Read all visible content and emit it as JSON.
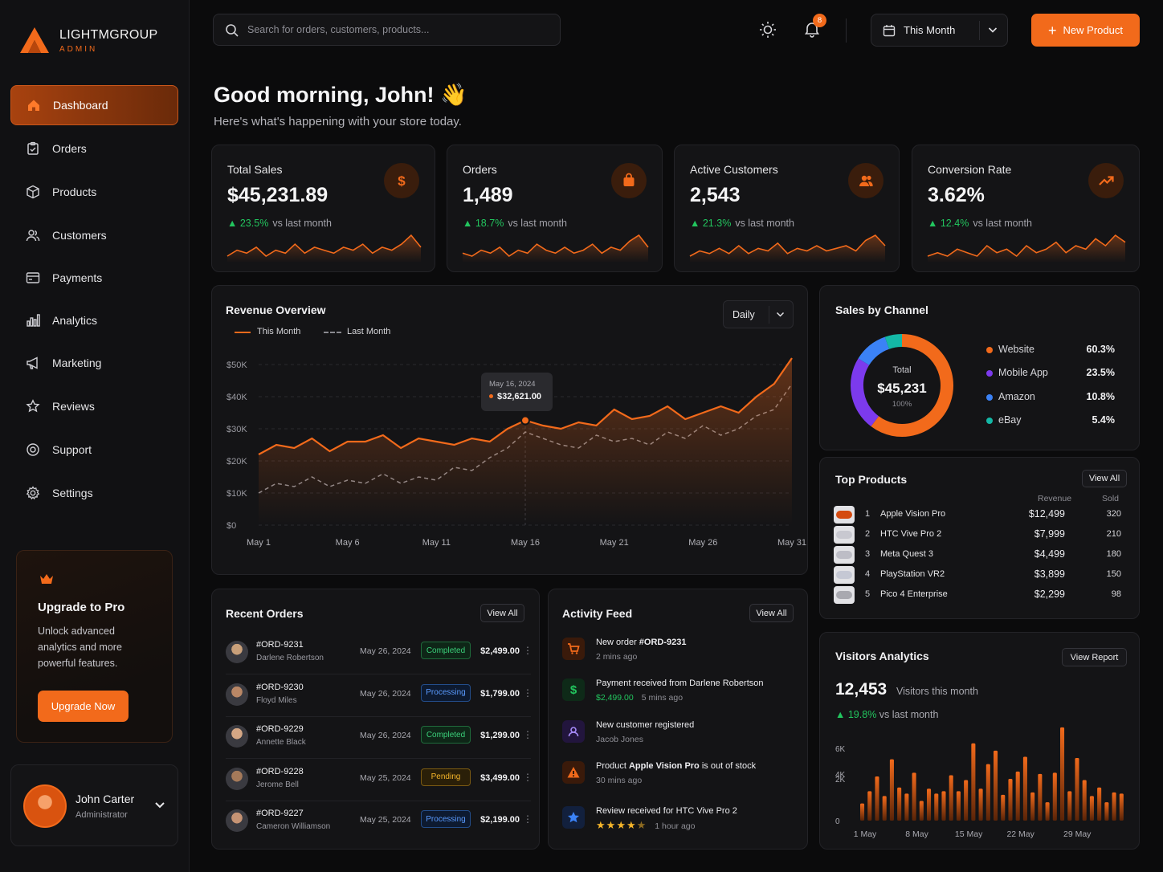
{
  "brand": {
    "name": "LIGHTMGROUP",
    "sub": "ADMIN",
    "accent": "#f26a1b"
  },
  "nav": [
    {
      "label": "Dashboard",
      "icon": "home-icon",
      "active": true
    },
    {
      "label": "Orders",
      "icon": "clipboard-icon"
    },
    {
      "label": "Products",
      "icon": "box-icon"
    },
    {
      "label": "Customers",
      "icon": "users-icon"
    },
    {
      "label": "Payments",
      "icon": "wallet-icon"
    },
    {
      "label": "Analytics",
      "icon": "bar-chart-icon"
    },
    {
      "label": "Marketing",
      "icon": "megaphone-icon"
    },
    {
      "label": "Reviews",
      "icon": "star-icon"
    },
    {
      "label": "Support",
      "icon": "lifebuoy-icon"
    },
    {
      "label": "Settings",
      "icon": "gear-icon"
    }
  ],
  "upgrade": {
    "title": "Upgrade to Pro",
    "text": "Unlock advanced analytics and more powerful features.",
    "button": "Upgrade Now"
  },
  "profile": {
    "name": "John Carter",
    "role": "Administrator"
  },
  "topbar": {
    "search_placeholder": "Search for orders, customers, products...",
    "notif_count": "8",
    "period": "This Month",
    "new_product": "New Product"
  },
  "greeting": {
    "title": "Good morning, John! 👋",
    "subtitle": "Here's what's happening with your store today."
  },
  "kpis": [
    {
      "title": "Total Sales",
      "value": "$45,231.89",
      "change": "23.5%",
      "suffix": "vs last month",
      "icon": "dollar-icon"
    },
    {
      "title": "Orders",
      "value": "1,489",
      "change": "18.7%",
      "suffix": "vs last month",
      "icon": "bag-icon"
    },
    {
      "title": "Active Customers",
      "value": "2,543",
      "change": "21.3%",
      "suffix": "vs last month",
      "icon": "users-icon"
    },
    {
      "title": "Conversion Rate",
      "value": "3.62%",
      "change": "12.4%",
      "suffix": "vs last month",
      "icon": "trend-up-icon"
    }
  ],
  "revenue": {
    "title": "Revenue Overview",
    "dropdown": "Daily",
    "tooltip_date": "May 16, 2024",
    "tooltip_value": "$32,621.00"
  },
  "channels": {
    "title": "Sales by Channel",
    "total_label": "Total",
    "total_value": "$45,231",
    "total_pct": "100%",
    "items": [
      {
        "name": "Website",
        "pct": "60.3%",
        "color": "#f26a1b"
      },
      {
        "name": "Mobile App",
        "pct": "23.5%",
        "color": "#7c3aed"
      },
      {
        "name": "Amazon",
        "pct": "10.8%",
        "color": "#3b82f6"
      },
      {
        "name": "eBay",
        "pct": "5.4%",
        "color": "#14b8a6"
      }
    ]
  },
  "top_products": {
    "title": "Top Products",
    "view_all": "View All",
    "col_revenue": "Revenue",
    "col_sold": "Sold",
    "items": [
      {
        "rank": "1",
        "name": "Apple Vision Pro",
        "revenue": "$12,499",
        "sold": "320"
      },
      {
        "rank": "2",
        "name": "HTC Vive Pro 2",
        "revenue": "$7,999",
        "sold": "210"
      },
      {
        "rank": "3",
        "name": "Meta Quest 3",
        "revenue": "$4,499",
        "sold": "180"
      },
      {
        "rank": "4",
        "name": "PlayStation VR2",
        "revenue": "$3,899",
        "sold": "150"
      },
      {
        "rank": "5",
        "name": "Pico 4 Enterprise",
        "revenue": "$2,299",
        "sold": "98"
      }
    ]
  },
  "recent_orders": {
    "title": "Recent Orders",
    "view_all": "View All",
    "items": [
      {
        "id": "#ORD-9231",
        "name": "Darlene Robertson",
        "date": "May 26, 2024",
        "status": "Completed",
        "amount": "$2,499.00"
      },
      {
        "id": "#ORD-9230",
        "name": "Floyd Miles",
        "date": "May 26, 2024",
        "status": "Processing",
        "amount": "$1,799.00"
      },
      {
        "id": "#ORD-9229",
        "name": "Annette Black",
        "date": "May 26, 2024",
        "status": "Completed",
        "amount": "$1,299.00"
      },
      {
        "id": "#ORD-9228",
        "name": "Jerome Bell",
        "date": "May 25, 2024",
        "status": "Pending",
        "amount": "$3,499.00"
      },
      {
        "id": "#ORD-9227",
        "name": "Cameron Williamson",
        "date": "May 25, 2024",
        "status": "Processing",
        "amount": "$2,199.00"
      }
    ]
  },
  "activity": {
    "title": "Activity Feed",
    "view_all": "View All",
    "items": [
      {
        "pre": "New order ",
        "strong": "#ORD-9231",
        "post": "",
        "sub": "2 mins ago",
        "icon": "cart-icon"
      },
      {
        "pre": "Payment received from Darlene Robertson",
        "strong": "",
        "post": "",
        "amount": "$2,499.00",
        "sub": "5 mins ago",
        "icon": "dollar-icon"
      },
      {
        "pre": "New customer registered",
        "strong": "",
        "post": "",
        "sub": "Jacob Jones",
        "icon": "user-icon"
      },
      {
        "pre": "Product ",
        "strong": "Apple Vision Pro",
        "post": " is out of stock",
        "sub": "30 mins ago",
        "icon": "warning-icon"
      },
      {
        "pre": "Review received for HTC Vive Pro 2",
        "strong": "",
        "post": "",
        "sub": "1 hour ago",
        "rating": 4.5,
        "icon": "star-icon"
      }
    ]
  },
  "visitors": {
    "title": "Visitors Analytics",
    "view_report": "View Report",
    "value": "12,453",
    "label": "Visitors this month",
    "change": "19.8%",
    "suffix": "vs last month"
  },
  "chart_data": [
    {
      "type": "line",
      "title": "Revenue Overview",
      "x_tick_labels": [
        "May 1",
        "May 6",
        "May 11",
        "May 16",
        "May 21",
        "May 26",
        "May 31"
      ],
      "y_tick_labels": [
        "$0",
        "$10K",
        "$20K",
        "$30K",
        "$40K",
        "$50K"
      ],
      "ylim": [
        0,
        50000
      ],
      "x": [
        1,
        2,
        3,
        4,
        5,
        6,
        7,
        8,
        9,
        10,
        11,
        12,
        13,
        14,
        15,
        16,
        17,
        18,
        19,
        20,
        21,
        22,
        23,
        24,
        25,
        26,
        27,
        28,
        29,
        30,
        31
      ],
      "series": [
        {
          "name": "This Month",
          "color": "#f26a1b",
          "dashed": false,
          "values": [
            22000,
            25000,
            24000,
            27000,
            23000,
            26000,
            26000,
            28000,
            24000,
            27000,
            26000,
            25000,
            27000,
            26000,
            30000,
            32621,
            31000,
            30000,
            32000,
            31000,
            36000,
            33000,
            34000,
            37000,
            33000,
            35000,
            37000,
            35000,
            40000,
            44000,
            52000
          ]
        },
        {
          "name": "Last Month",
          "color": "#8a8a90",
          "dashed": true,
          "values": [
            10000,
            13000,
            12000,
            15000,
            12000,
            14000,
            13000,
            16000,
            13000,
            15000,
            14000,
            18000,
            17000,
            21000,
            24000,
            29000,
            27000,
            25000,
            24000,
            28000,
            26000,
            27000,
            25000,
            29000,
            27000,
            31000,
            28000,
            30000,
            34000,
            36000,
            44000
          ]
        }
      ],
      "grid": true,
      "legend": "top-left"
    },
    {
      "type": "pie",
      "title": "Sales by Channel",
      "categories": [
        "Website",
        "Mobile App",
        "Amazon",
        "eBay"
      ],
      "values": [
        60.3,
        23.5,
        10.8,
        5.4
      ],
      "colors": [
        "#f26a1b",
        "#7c3aed",
        "#3b82f6",
        "#14b8a6"
      ]
    },
    {
      "type": "bar",
      "title": "Visitors Analytics",
      "x_tick_labels": [
        "1 May",
        "8 May",
        "15 May",
        "22 May",
        "29 May"
      ],
      "y_tick_labels": [
        "0",
        "2K",
        "4K",
        "6K"
      ],
      "ylim": [
        0,
        7000
      ],
      "values": [
        1400,
        2400,
        3600,
        2000,
        5000,
        2700,
        2200,
        3900,
        1600,
        2600,
        2200,
        2400,
        3700,
        2400,
        3300,
        6300,
        2600,
        4600,
        5700,
        2100,
        3400,
        4000,
        5200,
        2300,
        3800,
        1500,
        3900,
        7600,
        2400,
        5100,
        3300,
        2000,
        2700,
        1500,
        2300,
        2200
      ]
    },
    {
      "type": "area",
      "title": "Total Sales sparkline",
      "values": [
        5,
        7,
        6,
        8,
        5,
        7,
        6,
        9,
        6,
        8,
        7,
        6,
        8,
        7,
        9,
        6,
        8,
        7,
        9,
        12,
        8
      ]
    },
    {
      "type": "area",
      "title": "Orders sparkline",
      "values": [
        6,
        5,
        7,
        6,
        8,
        5,
        7,
        6,
        9,
        7,
        6,
        8,
        6,
        7,
        9,
        6,
        8,
        7,
        10,
        12,
        8
      ]
    },
    {
      "type": "area",
      "title": "Active Customers sparkline",
      "values": [
        5,
        7,
        6,
        8,
        6,
        9,
        6,
        8,
        7,
        10,
        6,
        8,
        7,
        9,
        7,
        8,
        9,
        7,
        11,
        13,
        9
      ]
    },
    {
      "type": "area",
      "title": "Conversion Rate sparkline",
      "values": [
        6,
        7,
        6,
        8,
        7,
        6,
        9,
        7,
        8,
        6,
        9,
        7,
        8,
        10,
        7,
        9,
        8,
        11,
        9,
        12,
        10
      ]
    }
  ]
}
